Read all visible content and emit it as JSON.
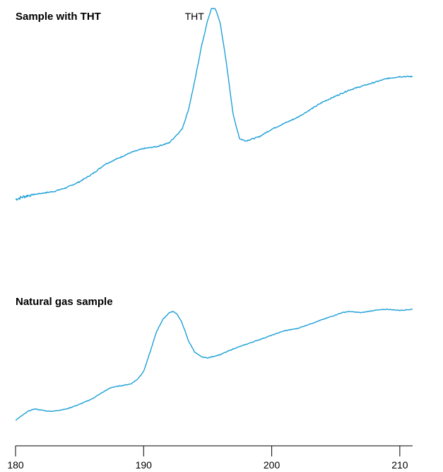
{
  "chart_data": {
    "type": "line",
    "color": "#1ea0d6",
    "x_axis": {
      "ticks": [
        180,
        190,
        200,
        210
      ],
      "xlim": [
        180,
        211
      ]
    },
    "panels": [
      {
        "title": "Sample with THT",
        "ylim": [
          0,
          1
        ],
        "annotations": [
          {
            "text": "THT",
            "x": 195.6
          }
        ],
        "series": [
          {
            "x": [
              180,
              181,
              182,
              183,
              184,
              185,
              186,
              187,
              188,
              189,
              190,
              191,
              192,
              193,
              193.5,
              194,
              194.5,
              195,
              195.3,
              195.6,
              196,
              196.5,
              197,
              197.5,
              198,
              199,
              200,
              201,
              202,
              203,
              204,
              205,
              206,
              207,
              208,
              209,
              210,
              211
            ],
            "y": [
              0.02,
              0.04,
              0.05,
              0.06,
              0.08,
              0.11,
              0.15,
              0.2,
              0.23,
              0.26,
              0.28,
              0.29,
              0.31,
              0.38,
              0.48,
              0.63,
              0.8,
              0.94,
              1.0,
              1.0,
              0.92,
              0.7,
              0.45,
              0.33,
              0.32,
              0.34,
              0.38,
              0.41,
              0.44,
              0.48,
              0.52,
              0.55,
              0.58,
              0.6,
              0.62,
              0.64,
              0.65,
              0.65
            ]
          }
        ]
      },
      {
        "title": "Natural gas sample",
        "ylim": [
          0,
          1
        ],
        "annotations": [],
        "series": [
          {
            "x": [
              180,
              180.5,
              181,
              181.5,
              182,
              182.5,
              183,
              184,
              185,
              186,
              187,
              187.5,
              188,
              188.5,
              189,
              189.5,
              190,
              190.5,
              191,
              191.5,
              192,
              192.3,
              192.6,
              193,
              193.5,
              194,
              194.5,
              195,
              196,
              197,
              198,
              199,
              200,
              201,
              202,
              203,
              204,
              205,
              205.5,
              206,
              207,
              208,
              209,
              210,
              211
            ],
            "y": [
              0.02,
              0.06,
              0.1,
              0.12,
              0.11,
              0.1,
              0.1,
              0.12,
              0.16,
              0.21,
              0.28,
              0.31,
              0.32,
              0.33,
              0.34,
              0.38,
              0.45,
              0.62,
              0.8,
              0.91,
              0.97,
              0.98,
              0.96,
              0.88,
              0.72,
              0.62,
              0.58,
              0.57,
              0.6,
              0.65,
              0.69,
              0.73,
              0.77,
              0.81,
              0.83,
              0.87,
              0.91,
              0.95,
              0.97,
              0.98,
              0.97,
              0.99,
              1.0,
              0.99,
              1.0
            ]
          }
        ]
      }
    ]
  }
}
